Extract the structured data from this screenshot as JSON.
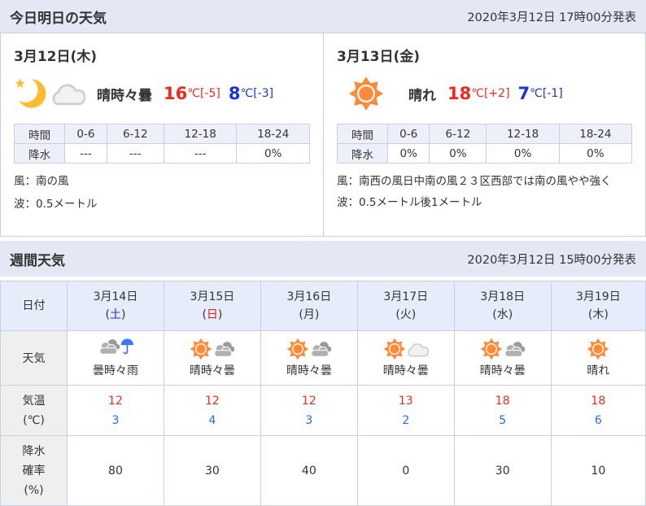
{
  "today": {
    "title": "今日明日の天気",
    "issued": "2020年3月12日 17時00分発表",
    "days": [
      {
        "date": "3月12日(木)",
        "icons": [
          "moon-icon",
          "cloud-icon"
        ],
        "weather": "晴時々曇",
        "high": "16",
        "high_diff": "[-5]",
        "low": "8",
        "low_diff": "[-3]",
        "unit": "℃",
        "time_label": "時間",
        "rain_label": "降水",
        "periods": [
          "0-6",
          "6-12",
          "12-18",
          "18-24"
        ],
        "rain": [
          "---",
          "---",
          "---",
          "0%"
        ],
        "wind": "風：南の風",
        "wave": "波：0.5メートル"
      },
      {
        "date": "3月13日(金)",
        "icons": [
          "sun-icon"
        ],
        "weather": "晴れ",
        "high": "18",
        "high_diff": "[+2]",
        "low": "7",
        "low_diff": "[-1]",
        "unit": "℃",
        "time_label": "時間",
        "rain_label": "降水",
        "periods": [
          "0-6",
          "6-12",
          "12-18",
          "18-24"
        ],
        "rain": [
          "0%",
          "0%",
          "0%",
          "0%"
        ],
        "wind": "風：南西の風日中南の風２３区西部では南の風やや強く",
        "wave": "波：0.5メートル後1メートル"
      }
    ]
  },
  "weekly": {
    "title": "週間天気",
    "issued": "2020年3月12日 15時00分発表",
    "labels": {
      "date": "日付",
      "weather": "天気",
      "temp": "気温",
      "temp_unit": "(℃)",
      "rain1": "降水",
      "rain2": "確率",
      "rain3": "(%)"
    },
    "days": [
      {
        "date": "3月14日",
        "dow": "土",
        "weather": "曇時々雨",
        "icons": [
          "cloud-dark-icon",
          "umbrella-icon"
        ],
        "high": "12",
        "low": "3",
        "rain": "80"
      },
      {
        "date": "3月15日",
        "dow": "日",
        "weather": "晴時々曇",
        "icons": [
          "sun-icon",
          "cloud-dark-icon"
        ],
        "high": "12",
        "low": "4",
        "rain": "30"
      },
      {
        "date": "3月16日",
        "dow": "月",
        "weather": "晴時々曇",
        "icons": [
          "sun-icon",
          "cloud-dark-icon"
        ],
        "high": "12",
        "low": "3",
        "rain": "40"
      },
      {
        "date": "3月17日",
        "dow": "火",
        "weather": "晴時々曇",
        "icons": [
          "sun-icon",
          "cloud-light-icon"
        ],
        "high": "13",
        "low": "2",
        "rain": "0"
      },
      {
        "date": "3月18日",
        "dow": "水",
        "weather": "晴時々曇",
        "icons": [
          "sun-icon",
          "cloud-dark-icon"
        ],
        "high": "18",
        "low": "5",
        "rain": "30"
      },
      {
        "date": "3月19日",
        "dow": "木",
        "weather": "晴れ",
        "icons": [
          "sun-icon"
        ],
        "high": "18",
        "low": "6",
        "rain": "10"
      }
    ]
  },
  "colors": {
    "header_bg": "#e4e8f4",
    "high": "#f0281e",
    "low": "#1e32dc",
    "sun": "#ff8a3a",
    "saturday": "#1e32dc",
    "sunday": "#e61919"
  }
}
